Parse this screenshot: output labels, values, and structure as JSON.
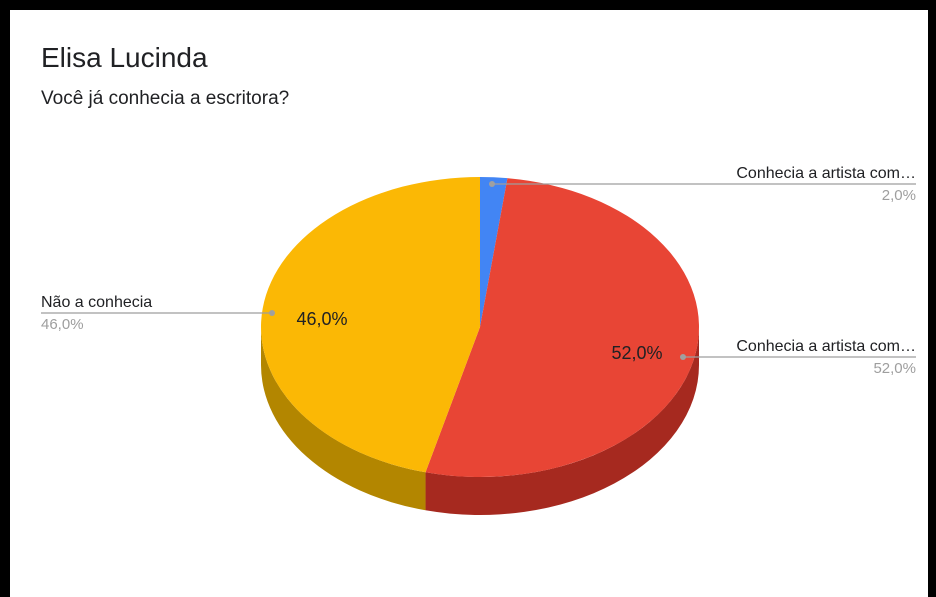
{
  "chart_data": {
    "type": "pie",
    "title": "Elisa Lucinda",
    "subtitle": "Você já conhecia a escritora?",
    "legend": "labeled slices",
    "three_d": true,
    "slices": [
      {
        "label": "Conhecia a artista com…",
        "value": 2.0,
        "pct_label": "2,0%",
        "color": "#4285f4",
        "side_color": "#2a5ab3"
      },
      {
        "label": "Conhecia a artista com…",
        "value": 52.0,
        "pct_label": "52,0%",
        "color": "#e84535",
        "side_color": "#a6291f"
      },
      {
        "label": "Não a conhecia",
        "value": 46.0,
        "pct_label": "46,0%",
        "color": "#fbb805",
        "side_color": "#b38600"
      }
    ]
  }
}
